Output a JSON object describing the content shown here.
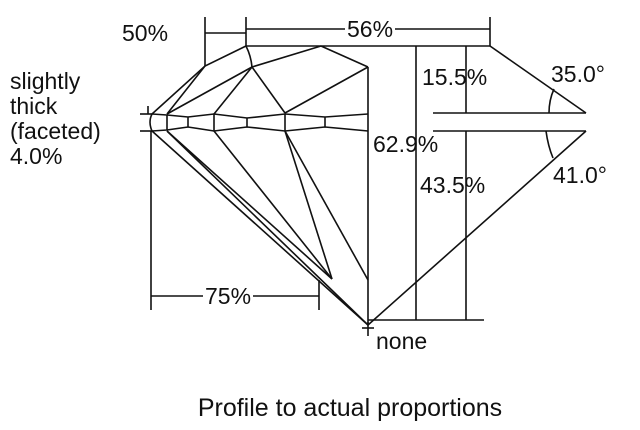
{
  "labels": {
    "star_length": "50%",
    "table": "56%",
    "crown_height": "15.5%",
    "crown_angle": "35.0°",
    "total_depth": "62.9%",
    "pavilion_depth": "43.5%",
    "pavilion_angle": "41.0°",
    "lower_half": "75%",
    "girdle_lines": [
      "slightly",
      "thick",
      "(faceted)",
      "4.0%"
    ],
    "culet": "none"
  },
  "caption": "Profile to actual proportions",
  "colors": {
    "line": "#111111",
    "background": "#ffffff"
  }
}
